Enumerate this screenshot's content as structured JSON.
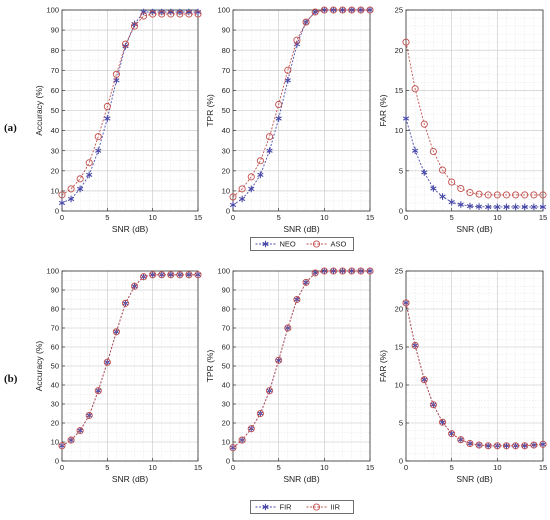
{
  "figure": {
    "row_labels": [
      "(a)",
      "(b)"
    ]
  },
  "legends": [
    {
      "row": 0,
      "entries": [
        {
          "label": "NEO",
          "color": "#4a4aa8",
          "marker": "star"
        },
        {
          "label": "ASO",
          "color": "#c0504d",
          "marker": "circle"
        }
      ]
    },
    {
      "row": 1,
      "entries": [
        {
          "label": "FIR",
          "color": "#4a4aa8",
          "marker": "star"
        },
        {
          "label": "IIR",
          "color": "#c0504d",
          "marker": "circle"
        }
      ]
    }
  ],
  "chart_data": [
    {
      "type": "line",
      "row": 0,
      "col": 0,
      "xlabel": "SNR (dB)",
      "ylabel": "Accuracy (%)",
      "xlim": [
        0,
        15
      ],
      "ylim": [
        0,
        100
      ],
      "xticks": [
        0,
        5,
        10,
        15
      ],
      "yticks": [
        0,
        10,
        20,
        30,
        40,
        50,
        60,
        70,
        80,
        90,
        100
      ],
      "grid": true,
      "x": [
        0,
        1,
        2,
        3,
        4,
        5,
        6,
        7,
        8,
        9,
        10,
        11,
        12,
        13,
        14,
        15
      ],
      "series": [
        {
          "name": "NEO",
          "color": "#4a4aa8",
          "marker": "star",
          "values": [
            4,
            6,
            11,
            18,
            30,
            46,
            65,
            82,
            93,
            99,
            99,
            99,
            99,
            99,
            99,
            99
          ]
        },
        {
          "name": "ASO",
          "color": "#c0504d",
          "marker": "circle",
          "values": [
            8,
            11,
            16,
            24,
            37,
            52,
            68,
            83,
            92,
            97,
            98,
            98,
            98,
            98,
            98,
            98
          ]
        }
      ]
    },
    {
      "type": "line",
      "row": 0,
      "col": 1,
      "xlabel": "SNR (dB)",
      "ylabel": "TPR (%)",
      "xlim": [
        0,
        15
      ],
      "ylim": [
        0,
        100
      ],
      "xticks": [
        0,
        5,
        10,
        15
      ],
      "yticks": [
        0,
        10,
        20,
        30,
        40,
        50,
        60,
        70,
        80,
        90,
        100
      ],
      "grid": true,
      "x": [
        0,
        1,
        2,
        3,
        4,
        5,
        6,
        7,
        8,
        9,
        10,
        11,
        12,
        13,
        14,
        15
      ],
      "series": [
        {
          "name": "NEO",
          "color": "#4a4aa8",
          "marker": "star",
          "values": [
            3,
            6,
            11,
            18,
            30,
            46,
            65,
            83,
            94,
            99,
            100,
            100,
            100,
            100,
            100,
            100
          ]
        },
        {
          "name": "ASO",
          "color": "#c0504d",
          "marker": "circle",
          "values": [
            7,
            11,
            17,
            25,
            37,
            53,
            70,
            85,
            94,
            99,
            100,
            100,
            100,
            100,
            100,
            100
          ]
        }
      ]
    },
    {
      "type": "line",
      "row": 0,
      "col": 2,
      "xlabel": "SNR (dB)",
      "ylabel": "FAR (%)",
      "xlim": [
        0,
        15
      ],
      "ylim": [
        0,
        25
      ],
      "xticks": [
        0,
        5,
        10,
        15
      ],
      "yticks": [
        0,
        5,
        10,
        15,
        20,
        25
      ],
      "grid": true,
      "x": [
        0,
        1,
        2,
        3,
        4,
        5,
        6,
        7,
        8,
        9,
        10,
        11,
        12,
        13,
        14,
        15
      ],
      "series": [
        {
          "name": "NEO",
          "color": "#4a4aa8",
          "marker": "star",
          "values": [
            11.5,
            7.5,
            4.8,
            2.8,
            1.8,
            1.1,
            0.8,
            0.6,
            0.55,
            0.5,
            0.5,
            0.5,
            0.5,
            0.5,
            0.5,
            0.5
          ]
        },
        {
          "name": "ASO",
          "color": "#c0504d",
          "marker": "circle",
          "values": [
            21,
            15.2,
            10.8,
            7.4,
            5.1,
            3.6,
            2.8,
            2.3,
            2.1,
            2.0,
            2.0,
            2.0,
            2.0,
            2.0,
            2.0,
            2.0
          ]
        }
      ]
    },
    {
      "type": "line",
      "row": 1,
      "col": 0,
      "xlabel": "SNR (dB)",
      "ylabel": "Accuracy (%)",
      "xlim": [
        0,
        15
      ],
      "ylim": [
        0,
        100
      ],
      "xticks": [
        0,
        5,
        10,
        15
      ],
      "yticks": [
        0,
        10,
        20,
        30,
        40,
        50,
        60,
        70,
        80,
        90,
        100
      ],
      "grid": true,
      "x": [
        0,
        1,
        2,
        3,
        4,
        5,
        6,
        7,
        8,
        9,
        10,
        11,
        12,
        13,
        14,
        15
      ],
      "series": [
        {
          "name": "FIR",
          "color": "#4a4aa8",
          "marker": "star",
          "values": [
            8,
            11,
            16,
            24,
            37,
            52,
            68,
            83,
            92,
            97,
            98,
            98,
            98,
            98,
            98,
            98
          ]
        },
        {
          "name": "IIR",
          "color": "#c0504d",
          "marker": "circle",
          "values": [
            8,
            11,
            16,
            24,
            37,
            52,
            68,
            83,
            92,
            97,
            98,
            98,
            98,
            98,
            98,
            98
          ]
        }
      ]
    },
    {
      "type": "line",
      "row": 1,
      "col": 1,
      "xlabel": "SNR (dB)",
      "ylabel": "TPR (%)",
      "xlim": [
        0,
        15
      ],
      "ylim": [
        0,
        100
      ],
      "xticks": [
        0,
        5,
        10,
        15
      ],
      "yticks": [
        0,
        10,
        20,
        30,
        40,
        50,
        60,
        70,
        80,
        90,
        100
      ],
      "grid": true,
      "x": [
        0,
        1,
        2,
        3,
        4,
        5,
        6,
        7,
        8,
        9,
        10,
        11,
        12,
        13,
        14,
        15
      ],
      "series": [
        {
          "name": "FIR",
          "color": "#4a4aa8",
          "marker": "star",
          "values": [
            7,
            11,
            17,
            25,
            37,
            53,
            70,
            85,
            94,
            99,
            100,
            100,
            100,
            100,
            100,
            100
          ]
        },
        {
          "name": "IIR",
          "color": "#c0504d",
          "marker": "circle",
          "values": [
            7,
            11,
            17,
            25,
            37,
            53,
            70,
            85,
            94,
            99,
            100,
            100,
            100,
            100,
            100,
            100
          ]
        }
      ]
    },
    {
      "type": "line",
      "row": 1,
      "col": 2,
      "xlabel": "SNR (dB)",
      "ylabel": "FAR (%)",
      "xlim": [
        0,
        15
      ],
      "ylim": [
        0,
        25
      ],
      "xticks": [
        0,
        5,
        10,
        15
      ],
      "yticks": [
        0,
        5,
        10,
        15,
        20,
        25
      ],
      "grid": true,
      "x": [
        0,
        1,
        2,
        3,
        4,
        5,
        6,
        7,
        8,
        9,
        10,
        11,
        12,
        13,
        14,
        15
      ],
      "series": [
        {
          "name": "FIR",
          "color": "#4a4aa8",
          "marker": "star",
          "values": [
            20.8,
            15.2,
            10.7,
            7.4,
            5.1,
            3.6,
            2.8,
            2.3,
            2.1,
            2.0,
            2.0,
            2.0,
            2.0,
            2.0,
            2.1,
            2.2
          ]
        },
        {
          "name": "IIR",
          "color": "#c0504d",
          "marker": "circle",
          "values": [
            20.8,
            15.2,
            10.7,
            7.4,
            5.1,
            3.6,
            2.8,
            2.3,
            2.1,
            2.0,
            2.0,
            2.0,
            2.0,
            2.0,
            2.1,
            2.2
          ]
        }
      ]
    }
  ]
}
